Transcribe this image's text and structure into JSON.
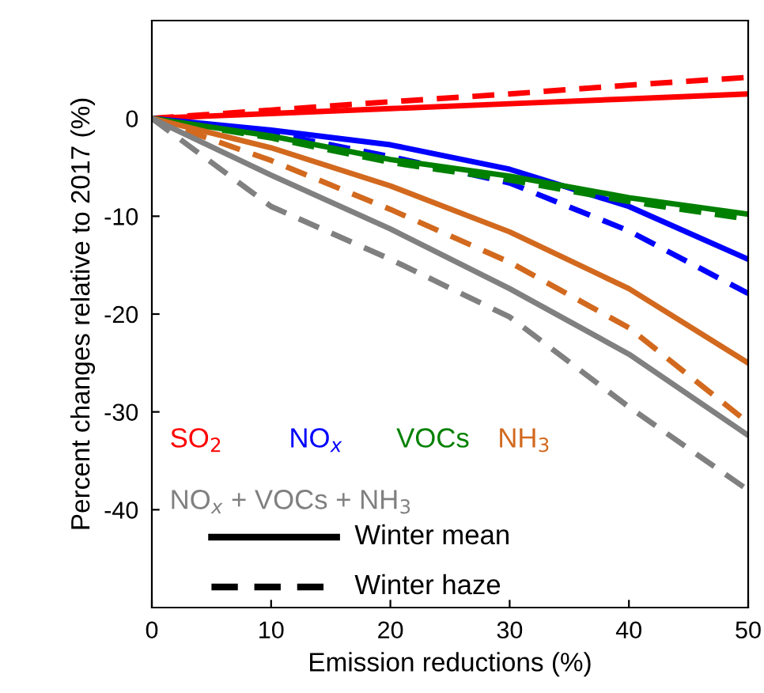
{
  "chart_data": {
    "type": "line",
    "xlabel": "Emission reductions (%)",
    "ylabel": "Percent changes relative to 2017 (%)",
    "x": [
      0,
      10,
      20,
      30,
      40,
      50
    ],
    "series": [
      {
        "name": "SO$_{2}$",
        "color": "#ff0000",
        "line_style": "solid",
        "values": [
          0,
          0.5,
          1,
          1.5,
          2,
          2.5
        ]
      },
      {
        "color": "#ff0000",
        "line_style": "dashed",
        "values": [
          0,
          0.85,
          1.7,
          2.5,
          3.4,
          4.2
        ]
      },
      {
        "name": "NO$_{x}$",
        "color": "#0000ff",
        "line_style": "solid",
        "values": [
          0,
          -1.2,
          -2.7,
          -5.2,
          -9,
          -14.4
        ]
      },
      {
        "color": "#0000ff",
        "line_style": "dashed",
        "values": [
          0,
          -1.5,
          -3.9,
          -6.6,
          -11.5,
          -17.9
        ]
      },
      {
        "name": "VOCs",
        "color": "#008000",
        "line_style": "solid",
        "values": [
          0,
          -1.8,
          -4.2,
          -5.9,
          -8.1,
          -9.8
        ]
      },
      {
        "color": "#008000",
        "line_style": "dashed",
        "values": [
          0,
          -2,
          -4.5,
          -6.3,
          -8.5,
          -10.3
        ]
      },
      {
        "name": "NH$_{3}$",
        "color": "#d2691e",
        "line_style": "solid",
        "values": [
          0,
          -3,
          -6.9,
          -11.6,
          -17.4,
          -25
        ]
      },
      {
        "color": "#d2691e",
        "line_style": "dashed",
        "values": [
          0,
          -4.3,
          -9.3,
          -14.7,
          -21.4,
          -31.1
        ]
      },
      {
        "name": "NO$_{x}$ + VOCs + NH$_{3}$",
        "color": "#808080",
        "line_style": "solid",
        "values": [
          0,
          -5.8,
          -11.3,
          -17.4,
          -24.1,
          -32.4
        ]
      },
      {
        "color": "#808080",
        "line_style": "dashed",
        "values": [
          0,
          -9,
          -14.4,
          -20.3,
          -29.5,
          -38
        ]
      }
    ],
    "annotations": [
      "Winter mean",
      "Winter haze"
    ],
    "xlim": [
      0,
      50
    ],
    "xticks": [
      0,
      10,
      20,
      30,
      40,
      50
    ],
    "ylim": [
      -50,
      10
    ],
    "yticks": [
      -40,
      -30,
      -20,
      -10,
      0
    ],
    "grid": false,
    "legend": "bottom left",
    "marker": "none"
  }
}
